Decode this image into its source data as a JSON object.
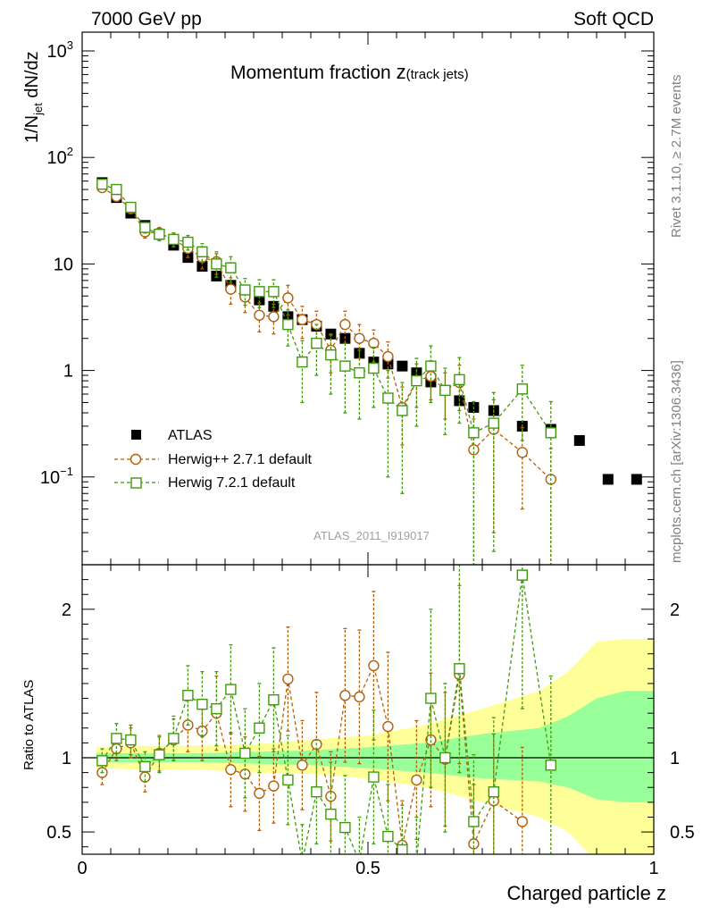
{
  "header": {
    "left_label": "7000 GeV pp",
    "right_label": "Soft QCD"
  },
  "side_labels": {
    "rivet": "Rivet 3.1.10, ≥ 2.7M events",
    "mcplots": "mcplots.cern.ch [arXiv:1306.3436]"
  },
  "chart_data": [
    {
      "type": "scatter",
      "title_main": "Momentum fraction ",
      "title_z": "z",
      "title_sub": "(track jets)",
      "ylabel_a": "1/N",
      "ylabel_sub": "jet",
      "ylabel_b": " dN/dz",
      "watermark": "ATLAS_2011_I919017",
      "yscale": "log",
      "xlim": [
        0,
        1
      ],
      "ylim": [
        0.015,
        1500
      ],
      "yticks": [
        {
          "value": 0.1,
          "base": "10",
          "exp": "−1"
        },
        {
          "value": 1,
          "base": "1",
          "exp": ""
        },
        {
          "value": 10,
          "base": "10",
          "exp": ""
        },
        {
          "value": 100,
          "base": "10",
          "exp": "2"
        },
        {
          "value": 1000,
          "base": "10",
          "exp": "3"
        }
      ],
      "legend_position": "lower-left",
      "series": [
        {
          "name": "ATLAS",
          "color": "#000000",
          "marker": "filled-square",
          "x": [
            0.035,
            0.06,
            0.085,
            0.11,
            0.135,
            0.16,
            0.185,
            0.21,
            0.235,
            0.26,
            0.285,
            0.31,
            0.335,
            0.36,
            0.385,
            0.41,
            0.435,
            0.46,
            0.485,
            0.51,
            0.535,
            0.56,
            0.585,
            0.61,
            0.635,
            0.66,
            0.685,
            0.72,
            0.77,
            0.82,
            0.87,
            0.92,
            0.97
          ],
          "y": [
            58,
            42,
            30,
            23,
            19,
            15,
            11.5,
            9.5,
            7.7,
            6.3,
            5.5,
            4.6,
            4.0,
            3.2,
            3.0,
            2.6,
            2.2,
            2.0,
            1.45,
            1.2,
            1.15,
            1.1,
            0.95,
            0.78,
            0.65,
            0.52,
            0.45,
            0.42,
            0.3,
            0.28,
            0.22,
            0.095,
            0.095
          ]
        },
        {
          "name": "Herwig++ 2.7.1 default",
          "color": "#b45f06",
          "marker": "open-circle",
          "x": [
            0.035,
            0.06,
            0.085,
            0.11,
            0.135,
            0.16,
            0.185,
            0.21,
            0.235,
            0.26,
            0.285,
            0.31,
            0.335,
            0.36,
            0.385,
            0.41,
            0.435,
            0.46,
            0.485,
            0.51,
            0.535,
            0.56,
            0.585,
            0.61,
            0.635,
            0.66,
            0.685,
            0.72,
            0.77,
            0.82
          ],
          "y": [
            52,
            43,
            33,
            20,
            19.5,
            17,
            14,
            11.5,
            10.5,
            5.8,
            4.9,
            3.3,
            3.2,
            4.8,
            3.0,
            2.7,
            1.55,
            2.7,
            2.0,
            1.8,
            1.35,
            0.45,
            0.8,
            0.88,
            0.65,
            0.77,
            0.18,
            0.28,
            0.17,
            0.095
          ],
          "err": [
            5,
            4,
            3,
            2.5,
            2.5,
            2.5,
            2.5,
            2.5,
            2.5,
            1.6,
            1.4,
            1.0,
            1.0,
            1.5,
            1.0,
            0.9,
            0.6,
            0.9,
            0.7,
            0.6,
            0.5,
            0.25,
            0.35,
            0.35,
            0.3,
            0.35,
            0.17,
            0.25,
            0.12,
            0.09
          ]
        },
        {
          "name": "Herwig 7.2.1 default",
          "color": "#3f9b0b",
          "marker": "open-square",
          "x": [
            0.035,
            0.06,
            0.085,
            0.11,
            0.135,
            0.16,
            0.185,
            0.21,
            0.235,
            0.26,
            0.285,
            0.31,
            0.335,
            0.36,
            0.385,
            0.41,
            0.435,
            0.46,
            0.485,
            0.51,
            0.535,
            0.56,
            0.585,
            0.61,
            0.635,
            0.66,
            0.685,
            0.72,
            0.77,
            0.82
          ],
          "y": [
            56,
            50,
            34,
            22,
            19,
            17,
            16,
            13,
            10,
            9.2,
            5.7,
            5.5,
            5.5,
            2.7,
            1.2,
            1.8,
            1.4,
            1.1,
            0.95,
            1.05,
            0.55,
            0.42,
            0.8,
            1.1,
            0.65,
            0.82,
            0.26,
            0.32,
            0.67,
            0.26
          ],
          "err": [
            5,
            5,
            3.5,
            2.5,
            2.5,
            2.5,
            2.5,
            2.5,
            2.5,
            2.5,
            1.6,
            1.6,
            1.6,
            1.0,
            0.7,
            0.9,
            0.8,
            0.7,
            0.6,
            0.6,
            0.45,
            0.35,
            0.5,
            0.6,
            0.4,
            0.5,
            0.25,
            0.3,
            0.45,
            0.25
          ]
        }
      ]
    },
    {
      "type": "scatter",
      "ylabel": "Ratio to ATLAS",
      "xlabel": "Charged particle z",
      "xlim": [
        0,
        1
      ],
      "ylim": [
        0.35,
        2.3
      ],
      "xtick_labels": [
        {
          "value": 0,
          "label": "0"
        },
        {
          "value": 0.5,
          "label": "0.5"
        },
        {
          "value": 1,
          "label": "1"
        }
      ],
      "ytick_labels": [
        {
          "value": 0.5,
          "label": "0.5"
        },
        {
          "value": 1,
          "label": "1"
        },
        {
          "value": 2,
          "label": "2"
        }
      ],
      "band_colors": {
        "inner": "#99ff99",
        "outer": "#ffff99"
      },
      "bands": {
        "x": [
          0.025,
          0.1,
          0.2,
          0.3,
          0.4,
          0.5,
          0.6,
          0.7,
          0.8,
          0.85,
          0.9,
          0.95,
          1.0
        ],
        "inner_lo": [
          0.97,
          0.97,
          0.97,
          0.96,
          0.95,
          0.93,
          0.9,
          0.86,
          0.84,
          0.8,
          0.72,
          0.7,
          0.7
        ],
        "inner_hi": [
          1.03,
          1.03,
          1.03,
          1.04,
          1.05,
          1.07,
          1.1,
          1.16,
          1.2,
          1.28,
          1.4,
          1.45,
          1.45
        ],
        "outer_lo": [
          0.93,
          0.92,
          0.92,
          0.9,
          0.89,
          0.86,
          0.8,
          0.7,
          0.6,
          0.5,
          0.3,
          0.3,
          0.3
        ],
        "outer_hi": [
          1.07,
          1.08,
          1.08,
          1.09,
          1.12,
          1.15,
          1.22,
          1.33,
          1.45,
          1.58,
          1.78,
          1.8,
          1.8
        ]
      },
      "series": [
        {
          "name": "Herwig++ 2.7.1 default",
          "color": "#b45f06",
          "marker": "open-circle",
          "x": [
            0.035,
            0.06,
            0.085,
            0.11,
            0.135,
            0.16,
            0.185,
            0.21,
            0.235,
            0.26,
            0.285,
            0.31,
            0.335,
            0.36,
            0.385,
            0.41,
            0.435,
            0.46,
            0.485,
            0.51,
            0.535,
            0.56,
            0.585,
            0.61,
            0.635,
            0.66,
            0.685,
            0.72,
            0.77
          ],
          "y": [
            0.9,
            1.06,
            1.1,
            0.87,
            1.03,
            1.12,
            1.22,
            1.18,
            1.3,
            0.92,
            0.89,
            0.76,
            0.81,
            1.53,
            0.95,
            1.09,
            0.74,
            1.42,
            1.41,
            1.62,
            1.21,
            0.41,
            0.85,
            1.12,
            0.99,
            1.56,
            0.42,
            0.71,
            0.57
          ],
          "err": [
            0.08,
            0.08,
            0.1,
            0.1,
            0.12,
            0.14,
            0.18,
            0.2,
            0.25,
            0.25,
            0.25,
            0.25,
            0.25,
            0.35,
            0.3,
            0.35,
            0.3,
            0.45,
            0.45,
            0.5,
            0.5,
            0.3,
            0.4,
            0.45,
            0.45,
            0.6,
            0.4,
            0.45,
            0.5
          ]
        },
        {
          "name": "Herwig 7.2.1 default",
          "color": "#3f9b0b",
          "marker": "open-square",
          "x": [
            0.035,
            0.06,
            0.085,
            0.11,
            0.135,
            0.16,
            0.185,
            0.21,
            0.235,
            0.26,
            0.285,
            0.31,
            0.335,
            0.36,
            0.385,
            0.41,
            0.435,
            0.46,
            0.485,
            0.51,
            0.535,
            0.56,
            0.585,
            0.61,
            0.635,
            0.66,
            0.685,
            0.72,
            0.77,
            0.82
          ],
          "y": [
            0.98,
            1.13,
            1.12,
            0.94,
            1.02,
            1.13,
            1.42,
            1.36,
            1.33,
            1.46,
            1.03,
            1.2,
            1.39,
            0.85,
            0.3,
            0.77,
            0.62,
            0.53,
            0.3,
            0.87,
            0.47,
            0.38,
            0.3,
            1.4,
            1.0,
            1.6,
            0.57,
            0.77,
            2.23,
            0.95
          ],
          "err": [
            0.08,
            0.1,
            0.1,
            0.1,
            0.12,
            0.15,
            0.2,
            0.22,
            0.25,
            0.3,
            0.3,
            0.3,
            0.35,
            0.3,
            0.25,
            0.35,
            0.35,
            0.35,
            0.3,
            0.45,
            0.35,
            0.3,
            0.3,
            0.6,
            0.5,
            0.7,
            0.45,
            0.5,
            0.9,
            0.6
          ]
        }
      ]
    }
  ]
}
